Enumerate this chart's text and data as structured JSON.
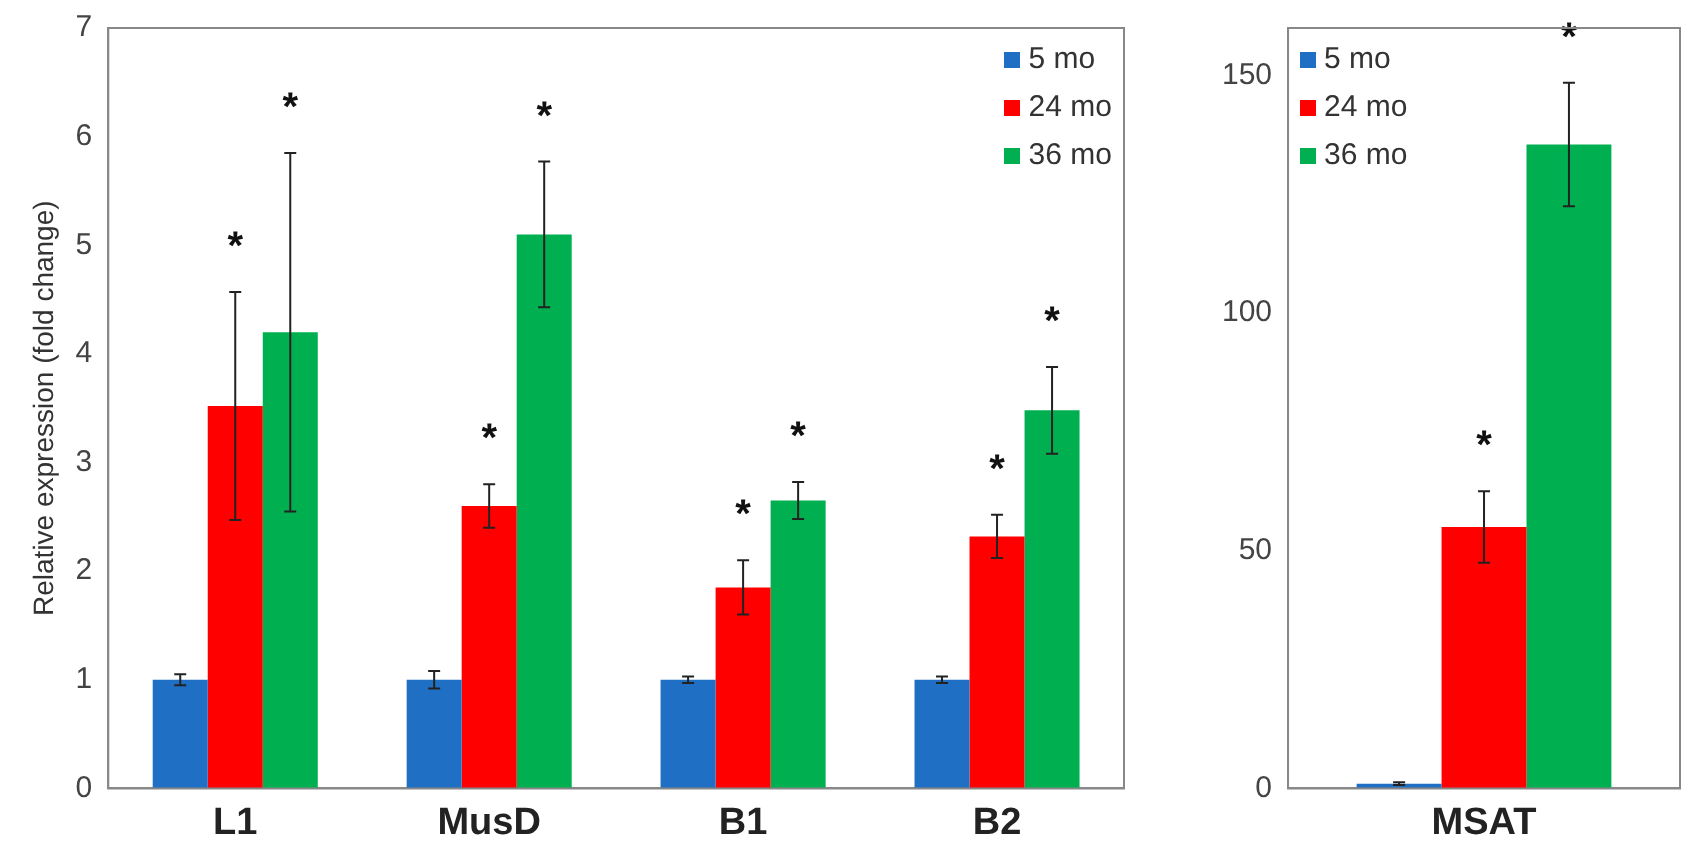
{
  "chart_data": [
    {
      "type": "bar",
      "ylabel": "Relative expression (fold change)",
      "categories": [
        "L1",
        "MusD",
        "B1",
        "B2"
      ],
      "ylim": [
        0,
        7
      ],
      "yticks": [
        0,
        1,
        2,
        3,
        4,
        5,
        6,
        7
      ],
      "grid": false,
      "legend": "top right",
      "series": [
        {
          "name": "5 mo",
          "color": "#1f6fc5",
          "values": [
            1,
            1,
            1,
            1
          ],
          "errors": [
            0.05,
            0.08,
            0.03,
            0.03
          ]
        },
        {
          "name": "24 mo",
          "color": "#ff0000",
          "values": [
            3.52,
            2.6,
            1.85,
            2.32
          ],
          "errors": [
            1.05,
            0.2,
            0.25,
            0.2
          ]
        },
        {
          "name": "36 mo",
          "color": "#00b050",
          "values": [
            4.2,
            5.1,
            2.65,
            3.48
          ],
          "errors": [
            1.65,
            0.67,
            0.17,
            0.4
          ]
        }
      ],
      "annotations": [
        "*",
        "*",
        "*",
        "*",
        "*",
        "*",
        "*",
        "*"
      ]
    },
    {
      "type": "bar",
      "categories": [
        "MSAT"
      ],
      "ylim": [
        0,
        160
      ],
      "yticks": [
        0,
        50,
        100,
        150
      ],
      "grid": false,
      "legend": "top left",
      "series": [
        {
          "name": "5 mo",
          "color": "#1f6fc5",
          "values": [
            1
          ],
          "errors": [
            0.3
          ]
        },
        {
          "name": "24 mo",
          "color": "#ff0000",
          "values": [
            55
          ],
          "errors": [
            7.5
          ]
        },
        {
          "name": "36 mo",
          "color": "#00b050",
          "values": [
            135.5
          ],
          "errors": [
            13
          ]
        }
      ],
      "annotations": [
        "*",
        "*"
      ]
    }
  ]
}
